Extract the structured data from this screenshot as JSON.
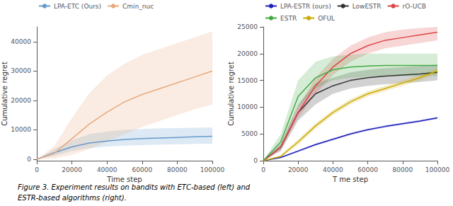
{
  "chart_data": [
    {
      "type": "line",
      "xlabel": "Time step",
      "ylabel": "Cumulative regret",
      "x": [
        0,
        10000,
        20000,
        30000,
        40000,
        50000,
        60000,
        70000,
        80000,
        90000,
        100000
      ],
      "xlim": [
        0,
        100000
      ],
      "ylim": [
        -500,
        45000
      ],
      "xticks": [
        0,
        20000,
        40000,
        60000,
        80000,
        100000
      ],
      "yticks": [
        0,
        10000,
        20000,
        30000,
        40000
      ],
      "grid": false,
      "legend": "upper left",
      "series": [
        {
          "name": "LPA-ETC (Ours)",
          "color": "#6699cc",
          "values": [
            0,
            2200,
            4200,
            5500,
            6200,
            6700,
            7000,
            7200,
            7400,
            7600,
            7800
          ],
          "low": [
            0,
            1200,
            2800,
            3800,
            4300,
            4600,
            4800,
            5000,
            5100,
            5200,
            5300
          ],
          "high": [
            0,
            3500,
            6500,
            8500,
            9500,
            10000,
            10300,
            10500,
            10600,
            10700,
            10800
          ]
        },
        {
          "name": "Cmin_nuc",
          "color": "#e8a87c",
          "values": [
            0,
            2000,
            7000,
            12000,
            16000,
            19500,
            22000,
            24000,
            26000,
            28000,
            30000
          ],
          "low": [
            0,
            300,
            1500,
            3500,
            6000,
            8500,
            11000,
            13000,
            15000,
            17000,
            18500
          ],
          "high": [
            0,
            4500,
            14000,
            22500,
            28500,
            32500,
            35500,
            37500,
            39500,
            41500,
            43500
          ]
        }
      ]
    },
    {
      "type": "line",
      "xlabel": "T me step",
      "ylabel": "Cumulative regret",
      "x": [
        0,
        10000,
        20000,
        30000,
        40000,
        50000,
        60000,
        70000,
        80000,
        90000,
        100000
      ],
      "xlim": [
        0,
        100000
      ],
      "ylim": [
        0,
        25000
      ],
      "xticks": [
        0,
        20000,
        40000,
        60000,
        80000,
        100000
      ],
      "yticks": [
        0,
        5000,
        10000,
        15000,
        20000,
        25000
      ],
      "grid": false,
      "legend": "upper left",
      "series": [
        {
          "name": "LPA-ESTR (ours)",
          "color": "#2020bb",
          "values": [
            0,
            600,
            1800,
            3000,
            4000,
            5000,
            5800,
            6400,
            6900,
            7400,
            8000
          ],
          "low": [
            0,
            500,
            1600,
            2800,
            3800,
            4800,
            5600,
            6200,
            6700,
            7200,
            7800
          ],
          "high": [
            0,
            700,
            2000,
            3200,
            4200,
            5200,
            6000,
            6600,
            7100,
            7600,
            8200
          ]
        },
        {
          "name": "LowESTR",
          "color": "#333333",
          "values": [
            0,
            2500,
            9000,
            12500,
            14000,
            15000,
            15500,
            15800,
            16000,
            16200,
            16500
          ],
          "low": [
            0,
            1800,
            7500,
            10500,
            12500,
            13500,
            14000,
            14300,
            14500,
            14700,
            15000
          ],
          "high": [
            0,
            3200,
            10500,
            14500,
            15500,
            16500,
            17000,
            17300,
            17500,
            17700,
            18000
          ]
        },
        {
          "name": "rO-UCB",
          "color": "#dd4444",
          "values": [
            0,
            2500,
            9000,
            14000,
            17500,
            20000,
            21500,
            22500,
            23000,
            23500,
            24000
          ],
          "low": [
            0,
            2000,
            8000,
            12500,
            16000,
            18500,
            20000,
            21000,
            21500,
            22000,
            22500
          ],
          "high": [
            0,
            3000,
            10000,
            15500,
            19000,
            21500,
            23000,
            24000,
            24500,
            24800,
            25000
          ]
        },
        {
          "name": "ESTR",
          "color": "#44aa44",
          "values": [
            0,
            3500,
            12000,
            15500,
            17000,
            17500,
            17700,
            17800,
            17800,
            17800,
            17800
          ],
          "low": [
            0,
            2500,
            10000,
            13500,
            15000,
            15500,
            15700,
            15800,
            15800,
            15800,
            15800
          ],
          "high": [
            0,
            5000,
            15000,
            18500,
            19500,
            19800,
            20000,
            20000,
            20000,
            20000,
            20000
          ]
        },
        {
          "name": "OFUL",
          "color": "#ccaa00",
          "values": [
            0,
            800,
            3500,
            6500,
            9000,
            11000,
            12500,
            13500,
            14500,
            15500,
            16800
          ],
          "low": [
            0,
            600,
            3000,
            6000,
            8500,
            10500,
            12000,
            13000,
            14000,
            15000,
            16300
          ],
          "high": [
            0,
            1000,
            4000,
            7000,
            9500,
            11500,
            13000,
            14000,
            15000,
            16000,
            17300
          ]
        }
      ]
    }
  ],
  "annotations": [
    "Figure 3. Experiment results on bandits with ETC-based (left) and",
    "ESTR-based algorithms (right)."
  ]
}
